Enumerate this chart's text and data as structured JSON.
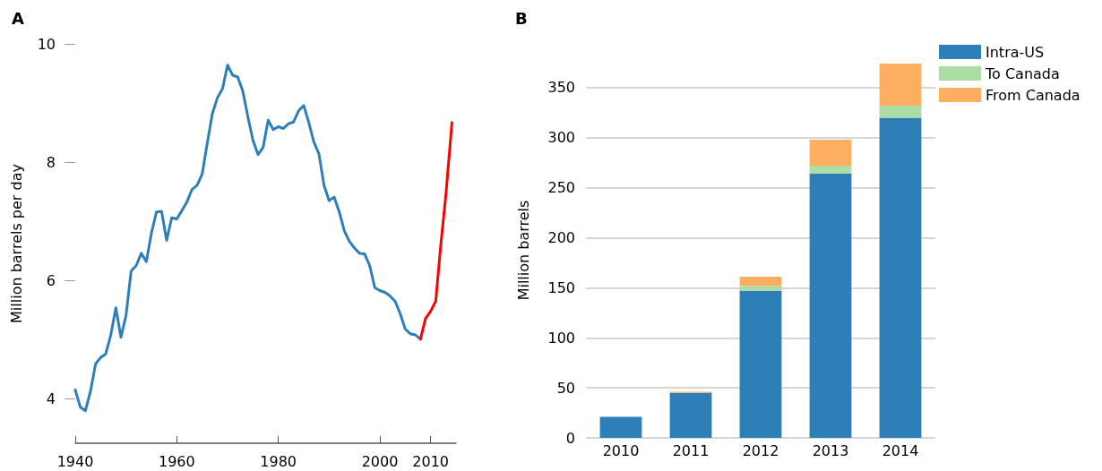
{
  "chart_data": [
    {
      "type": "line",
      "title": "A",
      "ylabel": "Million barrels per day",
      "xlim": [
        1940,
        2015
      ],
      "xticks": [
        1940,
        1960,
        1980,
        2000,
        2010
      ],
      "ylim": [
        3.25,
        10
      ],
      "yticks": [
        4,
        6,
        8,
        10
      ],
      "grid": false,
      "legend": false,
      "marker": "none",
      "line_style": "solid",
      "series": [
        {
          "color": "#2e7fb8",
          "x": [
            1940,
            1941,
            1942,
            1943,
            1944,
            1945,
            1946,
            1947,
            1948,
            1949,
            1950,
            1951,
            1952,
            1953,
            1954,
            1955,
            1956,
            1957,
            1958,
            1959,
            1960,
            1961,
            1962,
            1963,
            1964,
            1965,
            1966,
            1967,
            1968,
            1969,
            1970,
            1971,
            1972,
            1973,
            1974,
            1975,
            1976,
            1977,
            1978,
            1979,
            1980,
            1981,
            1982,
            1983,
            1984,
            1985,
            1986,
            1987,
            1988,
            1989,
            1990,
            1991,
            1992,
            1993,
            1994,
            1995,
            1996,
            1997,
            1998,
            1999,
            2000,
            2001,
            2002,
            2003,
            2004,
            2005,
            2006,
            2007,
            2008
          ],
          "values": [
            4.15,
            3.86,
            3.8,
            4.13,
            4.59,
            4.7,
            4.76,
            5.08,
            5.54,
            5.04,
            5.41,
            6.16,
            6.25,
            6.46,
            6.32,
            6.8,
            7.16,
            7.17,
            6.68,
            7.06,
            7.04,
            7.18,
            7.33,
            7.54,
            7.61,
            7.8,
            8.32,
            8.82,
            9.09,
            9.24,
            9.64,
            9.47,
            9.44,
            9.2,
            8.77,
            8.37,
            8.13,
            8.25,
            8.71,
            8.55,
            8.6,
            8.57,
            8.65,
            8.68,
            8.87,
            8.96,
            8.67,
            8.34,
            8.14,
            7.61,
            7.35,
            7.41,
            7.16,
            6.84,
            6.66,
            6.55,
            6.46,
            6.45,
            6.25,
            5.88,
            5.83,
            5.8,
            5.74,
            5.65,
            5.44,
            5.18,
            5.1,
            5.08,
            5.01
          ]
        },
        {
          "color": "#ff0000",
          "x": [
            2008,
            2009,
            2010,
            2011,
            2012,
            2013,
            2014.2
          ],
          "values": [
            5.01,
            5.36,
            5.48,
            5.65,
            6.6,
            7.45,
            8.67
          ]
        }
      ]
    },
    {
      "type": "bar",
      "title": "B",
      "ylabel": "Million barrels",
      "categories": [
        "2010",
        "2011",
        "2012",
        "2013",
        "2014"
      ],
      "ylim": [
        0,
        375
      ],
      "yticks": [
        0,
        50,
        100,
        150,
        200,
        250,
        300,
        350
      ],
      "grid": "y",
      "stacked": true,
      "legend": "top right",
      "series": [
        {
          "name": "Intra-US",
          "color": "#2e7fb8",
          "values": [
            21,
            45,
            147,
            264,
            320
          ]
        },
        {
          "name": "To Canada",
          "color": "#abdda4",
          "values": [
            0,
            0,
            5,
            8,
            12
          ]
        },
        {
          "name": "From Canada",
          "color": "#fdae61",
          "values": [
            0,
            1,
            9,
            26,
            42
          ]
        }
      ]
    }
  ]
}
